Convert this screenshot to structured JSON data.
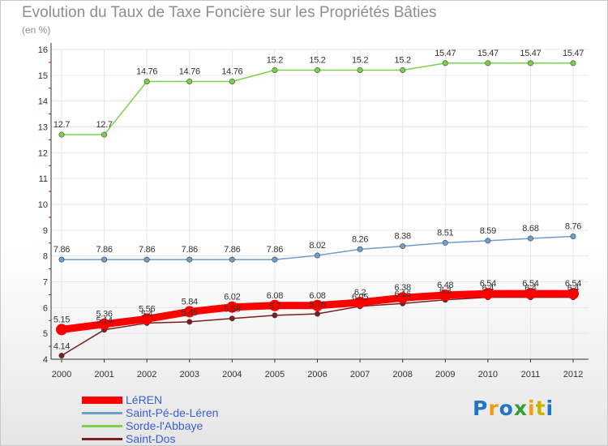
{
  "colors": {
    "leren": "#ff0000",
    "saint_pe": "#6d9ecf",
    "sorde": "#7cd14a",
    "saint_dos": "#7a1f1f",
    "axis": "#333333",
    "grid": "#e6e6e6",
    "legend_text": "#3a5fd6"
  },
  "logo": {
    "letters": [
      "P",
      "r",
      "o",
      "x",
      "i",
      "t",
      "i"
    ],
    "letter_colors": [
      "#1f76c8",
      "#f39c12",
      "#1f76c8",
      "#2f9e3b",
      "#f39c12",
      "#c8b400",
      "#1f76c8"
    ]
  },
  "chart_data": {
    "type": "line",
    "title": "Evolution du Taux de Taxe Foncière sur les Propriétés Bâties",
    "subtitle": "(en %)",
    "xlabel": "",
    "ylabel": "(en %)",
    "x": [
      "2000",
      "2001",
      "2002",
      "2003",
      "2004",
      "2005",
      "2006",
      "2007",
      "2008",
      "2009",
      "2010",
      "2011",
      "2012"
    ],
    "ylim": [
      4,
      16
    ],
    "yticks": [
      "4",
      "5",
      "6",
      "7",
      "8",
      "9",
      "10",
      "11",
      "12",
      "13",
      "14",
      "15",
      "16"
    ],
    "grid": true,
    "legend_position": "bottom-left",
    "series": [
      {
        "name": "LéREN",
        "key": "leren",
        "values": [
          5.15,
          5.36,
          5.56,
          5.84,
          6.02,
          6.08,
          6.08,
          6.2,
          6.38,
          6.48,
          6.54,
          6.54,
          6.54
        ],
        "labels": [
          "5.15",
          "5.36",
          "5.56",
          "5.84",
          "6.02",
          "6.08",
          "6.08",
          "6.2",
          "6.38",
          "6.48",
          "6.54",
          "6.54",
          "6.54"
        ]
      },
      {
        "name": "Saint-Pé-de-Léren",
        "key": "saint_pe",
        "values": [
          7.86,
          7.86,
          7.86,
          7.86,
          7.86,
          7.86,
          8.02,
          8.26,
          8.38,
          8.51,
          8.59,
          8.68,
          8.76
        ],
        "labels": [
          "7.86",
          "7.86",
          "7.86",
          "7.86",
          "7.86",
          "7.86",
          "8.02",
          "8.26",
          "8.38",
          "8.51",
          "8.59",
          "8.68",
          "8.76"
        ]
      },
      {
        "name": "Sorde-l'Abbaye",
        "key": "sorde",
        "values": [
          12.7,
          12.7,
          14.76,
          14.76,
          14.76,
          15.2,
          15.2,
          15.2,
          15.2,
          15.47,
          15.47,
          15.47,
          15.47
        ],
        "labels": [
          "12.7",
          "12.7",
          "14.76",
          "14.76",
          "14.76",
          "15.2",
          "15.2",
          "15.2",
          "15.2",
          "15.47",
          "15.47",
          "15.47",
          "15.47"
        ]
      },
      {
        "name": "Saint-Dos",
        "key": "saint_dos",
        "values": [
          4.14,
          5.14,
          5.4,
          5.45,
          5.58,
          5.7,
          5.76,
          6.05,
          6.16,
          6.3,
          6.4,
          6.4,
          6.4
        ],
        "labels": [
          "4.14",
          "5.14",
          "5.4",
          "5.45",
          "5.58",
          "5.7",
          "5.76",
          "6.05",
          "6.16",
          "6.3",
          "6.4",
          "6.4",
          "6.4"
        ]
      }
    ]
  }
}
